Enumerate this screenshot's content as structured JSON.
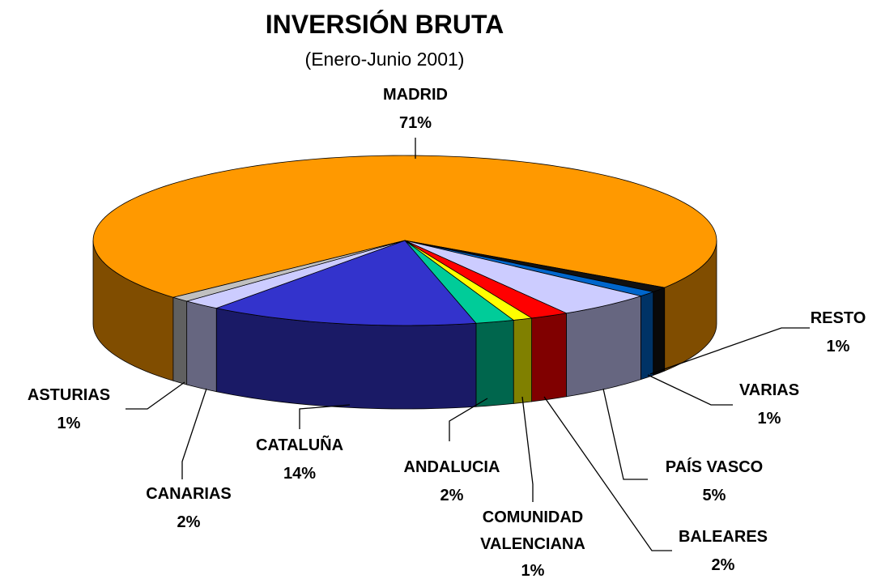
{
  "chart_data": {
    "type": "pie3d",
    "title": "INVERSIÓN BRUTA",
    "subtitle": "(Enero-Junio 2001)",
    "categories": [
      "MADRID",
      "RESTO",
      "VARIAS",
      "PAÍS VASCO",
      "BALEARES",
      "COMUNIDAD VALENCIANA",
      "ANDALUCIA",
      "CATALUÑA",
      "CANARIAS",
      "ASTURIAS"
    ],
    "values": [
      71,
      1,
      1,
      5,
      2,
      1,
      2,
      14,
      2,
      1
    ],
    "value_labels": [
      "71%",
      "1%",
      "1%",
      "5%",
      "2%",
      "1%",
      "2%",
      "14%",
      "2%",
      "1%"
    ],
    "colors": [
      "#ff9900",
      "#111111",
      "#0066cc",
      "#ccccff",
      "#ff0000",
      "#ffff00",
      "#00cc99",
      "#3333cc",
      "#ccccff",
      "#c0c0c0"
    ]
  }
}
